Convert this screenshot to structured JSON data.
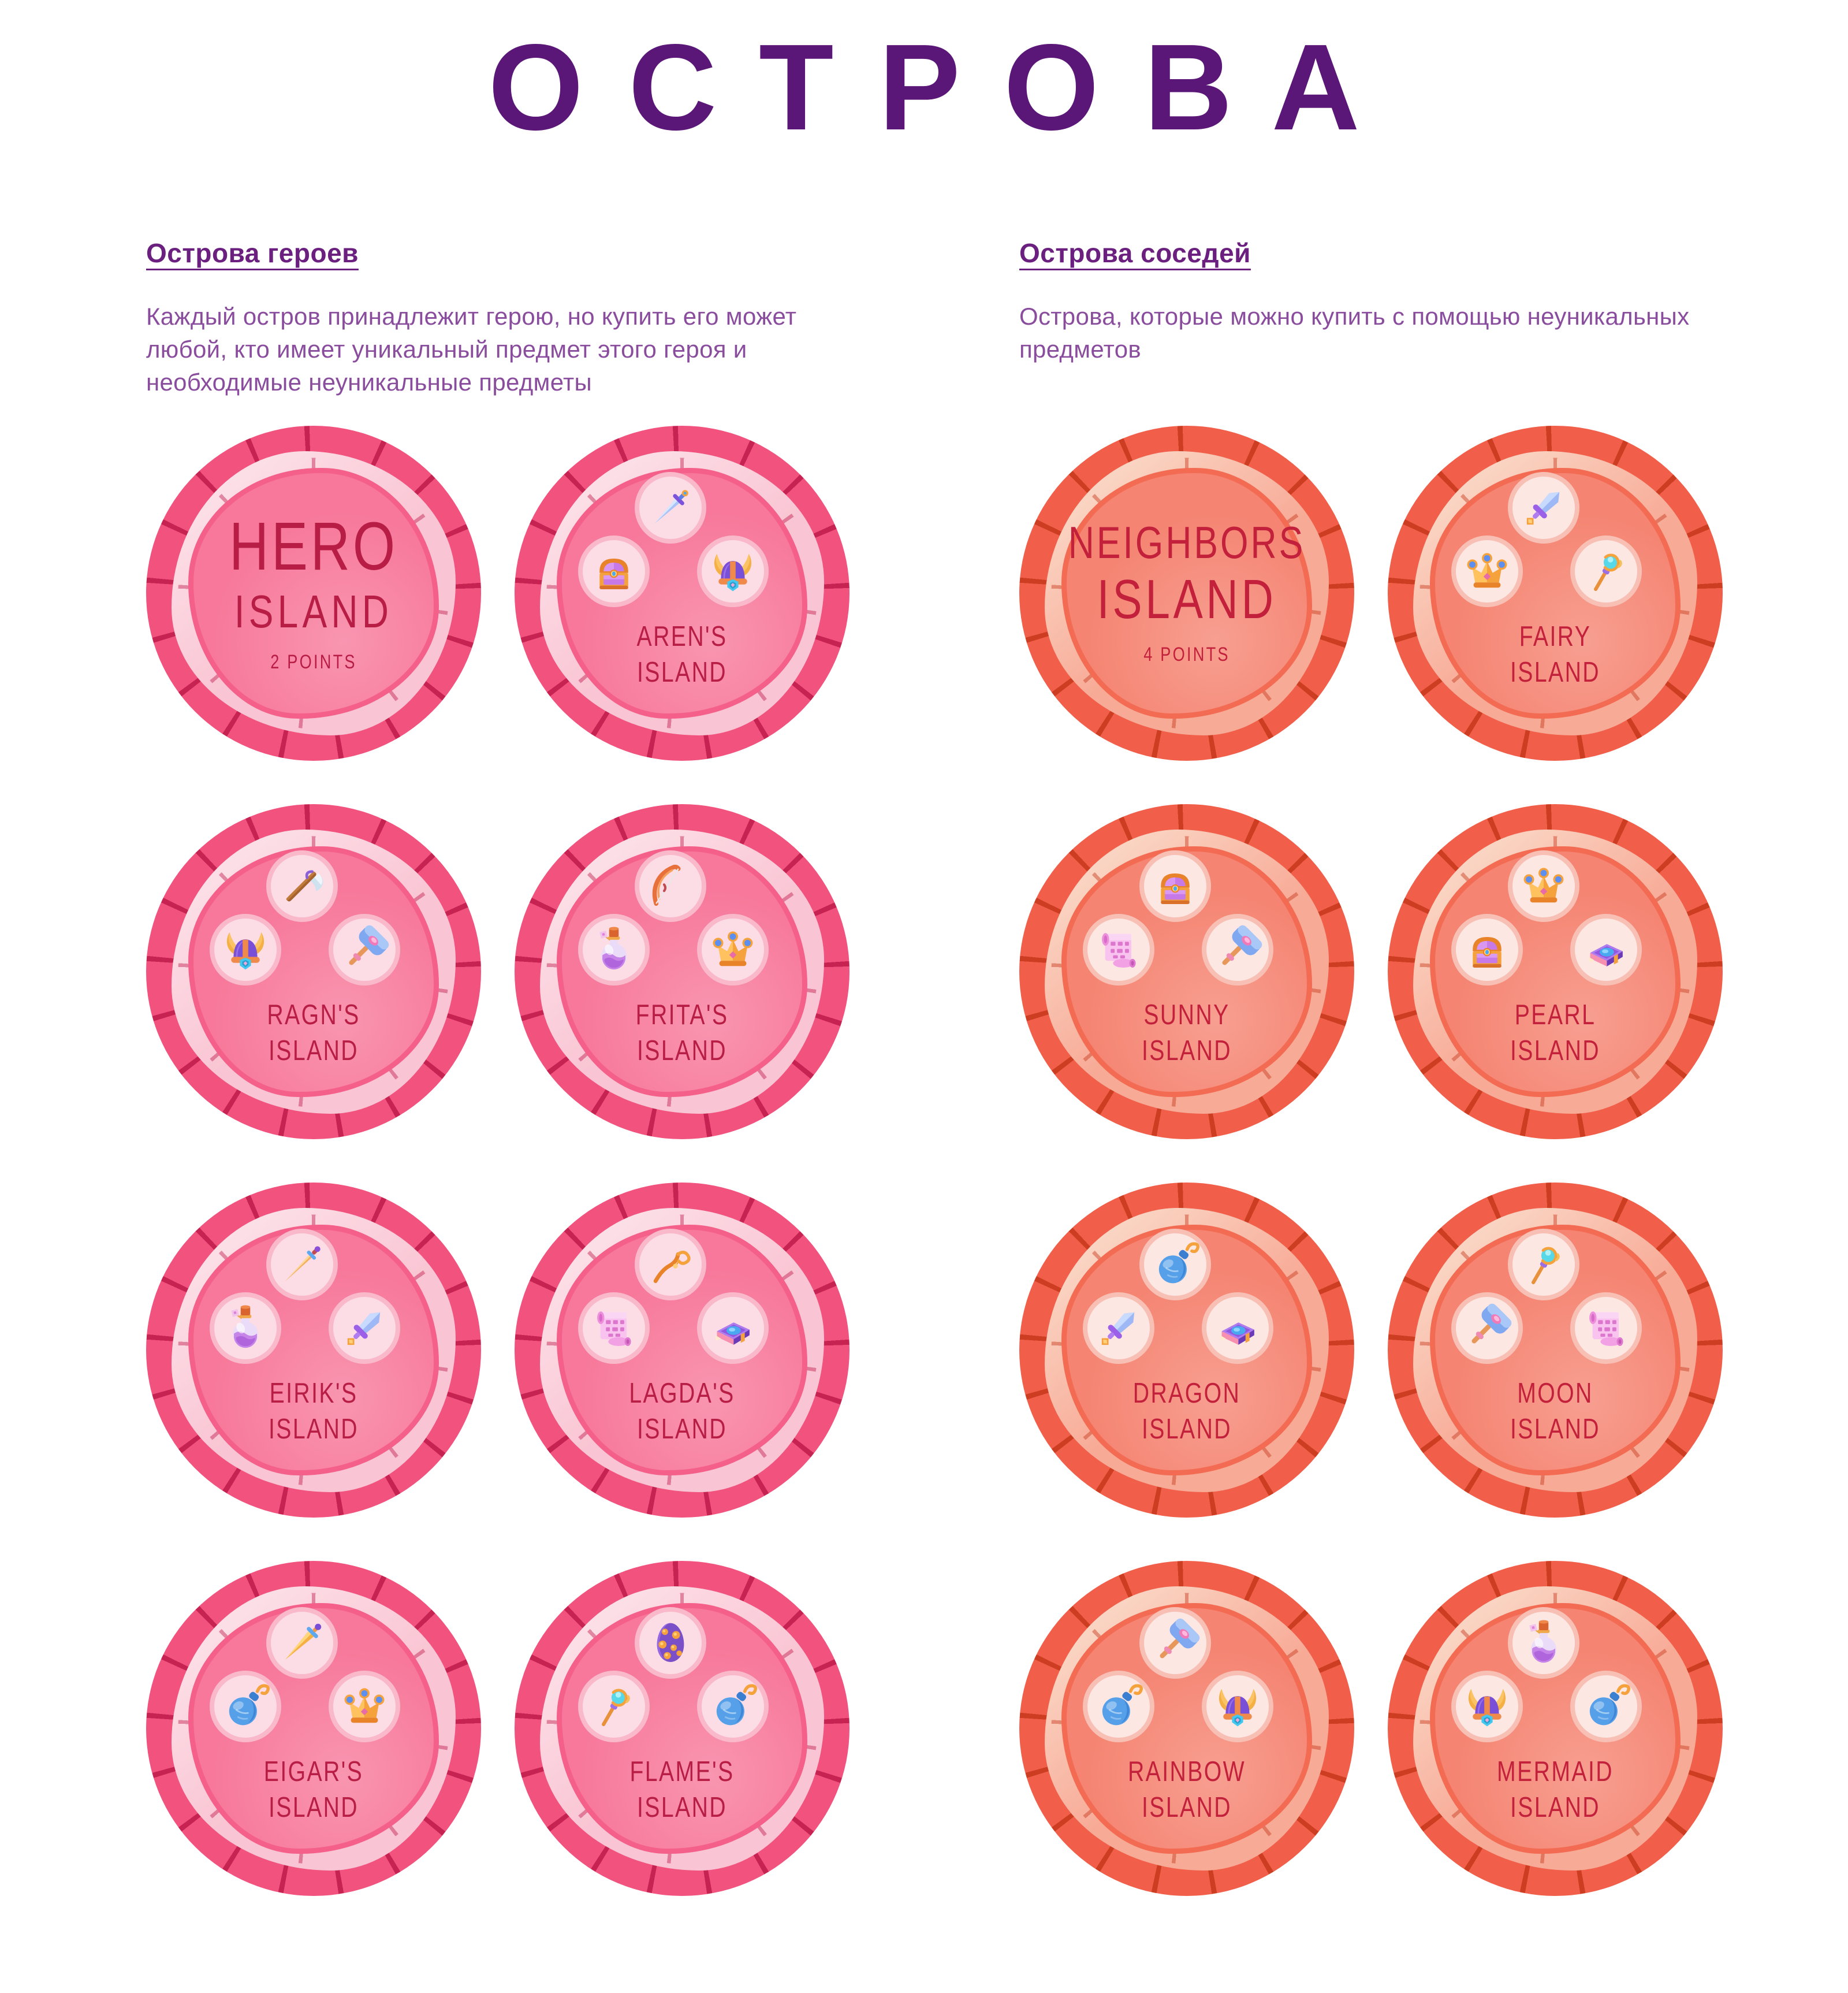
{
  "page": {
    "title": "ОСТРОВА"
  },
  "sections": [
    {
      "id": "heroes",
      "heading": "Острова героев",
      "description": "Каждый остров принадлежит герою, но купить его может любой, кто имеет уникальный предмет этого героя и необходимые неуникальные предметы"
    },
    {
      "id": "neighbors",
      "heading": "Острова соседей",
      "description": "Острова, которые можно купить с помощью неуникальных предметов"
    }
  ],
  "islands": [
    {
      "id": "hero",
      "section": "heroes",
      "type": "label",
      "name_lines": [
        "HERO",
        "ISLAND"
      ],
      "points": "2 POINTS"
    },
    {
      "id": "aren",
      "section": "heroes",
      "type": "items",
      "name_lines": [
        "AREN'S",
        "ISLAND"
      ],
      "items": [
        "sword",
        "chest",
        "helmet"
      ]
    },
    {
      "id": "ragn",
      "section": "heroes",
      "type": "items",
      "name_lines": [
        "RAGN'S",
        "ISLAND"
      ],
      "items": [
        "axe",
        "helmet",
        "hammer"
      ]
    },
    {
      "id": "frita",
      "section": "heroes",
      "type": "items",
      "name_lines": [
        "FRITA'S",
        "ISLAND"
      ],
      "items": [
        "bow",
        "potion",
        "crown"
      ]
    },
    {
      "id": "eirik",
      "section": "heroes",
      "type": "items",
      "name_lines": [
        "EIRIK'S",
        "ISLAND"
      ],
      "items": [
        "dagger",
        "potion",
        "shortsword"
      ]
    },
    {
      "id": "lagda",
      "section": "heroes",
      "type": "items",
      "name_lines": [
        "LAGDA'S",
        "ISLAND"
      ],
      "items": [
        "staff",
        "scroll",
        "book"
      ]
    },
    {
      "id": "eigar",
      "section": "heroes",
      "type": "items",
      "name_lines": [
        "EIGAR'S",
        "ISLAND"
      ],
      "items": [
        "goldsword",
        "bomb",
        "crown"
      ]
    },
    {
      "id": "flame",
      "section": "heroes",
      "type": "items",
      "name_lines": [
        "FLAME'S",
        "ISLAND"
      ],
      "items": [
        "egg",
        "scepter",
        "bomb"
      ]
    },
    {
      "id": "neighbors",
      "section": "neighbors",
      "type": "label",
      "name_lines": [
        "NEIGHBORS",
        "ISLAND"
      ],
      "points": "4 POINTS"
    },
    {
      "id": "fairy",
      "section": "neighbors",
      "type": "items",
      "name_lines": [
        "FAIRY",
        "ISLAND"
      ],
      "items": [
        "shortsword",
        "crown",
        "scepter"
      ]
    },
    {
      "id": "sunny",
      "section": "neighbors",
      "type": "items",
      "name_lines": [
        "SUNNY",
        "ISLAND"
      ],
      "items": [
        "chest",
        "scroll",
        "hammer"
      ]
    },
    {
      "id": "pearl",
      "section": "neighbors",
      "type": "items",
      "name_lines": [
        "PEARL",
        "ISLAND"
      ],
      "items": [
        "crown",
        "chest",
        "book"
      ]
    },
    {
      "id": "dragon",
      "section": "neighbors",
      "type": "items",
      "name_lines": [
        "DRAGON",
        "ISLAND"
      ],
      "items": [
        "bomb",
        "shortsword",
        "book"
      ]
    },
    {
      "id": "moon",
      "section": "neighbors",
      "type": "items",
      "name_lines": [
        "MOON",
        "ISLAND"
      ],
      "items": [
        "scepter",
        "hammer",
        "scroll"
      ]
    },
    {
      "id": "rainbow",
      "section": "neighbors",
      "type": "items",
      "name_lines": [
        "RAINBOW",
        "ISLAND"
      ],
      "items": [
        "hammer",
        "bomb",
        "helmet"
      ]
    },
    {
      "id": "mermaid",
      "section": "neighbors",
      "type": "items",
      "name_lines": [
        "MERMAID",
        "ISLAND"
      ],
      "items": [
        "potion",
        "helmet",
        "bomb"
      ]
    }
  ],
  "colors": {
    "title": "#5b1778",
    "heading": "#6b2080",
    "body-text": "#8a4d9e",
    "pink-outer": "#f2527e",
    "pink-crack": "#c21e4f",
    "pink-ring": "#f9c4d3",
    "pink-ring-light": "#fde4ea",
    "pink-inner": "#f7789a",
    "pink-inner-edge": "#f4608a",
    "pink-slot": "#fcdde6",
    "pink-slot-ring": "#f9b9cb",
    "pink-text": "#b81d45",
    "coral-outer": "#f15f4a",
    "coral-crack": "#c93a1e",
    "coral-ring": "#f7aa96",
    "coral-ring-light": "#fbdccb",
    "coral-inner": "#f58472",
    "coral-inner-edge": "#f26b52",
    "coral-slot": "#fde7e3",
    "coral-slot-ring": "#f8c0b4",
    "coral-text": "#c2203b"
  }
}
